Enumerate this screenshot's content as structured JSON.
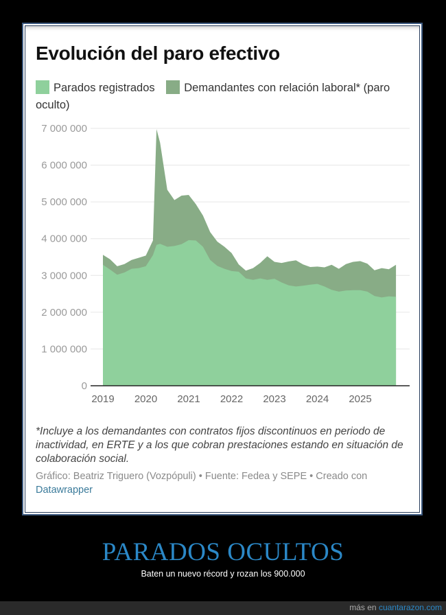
{
  "chart": {
    "title": "Evolución del paro efectivo",
    "legend": [
      {
        "label": "Parados registrados",
        "color": "#8fd09c"
      },
      {
        "label": "Demandantes con relación laboral* (paro oculto)",
        "color": "#88ac86"
      }
    ],
    "y_ticks": [
      "7 000 000",
      "6 000 000",
      "5 000 000",
      "4 000 000",
      "3 000 000",
      "2 000 000",
      "1 000 000",
      "0"
    ],
    "x_ticks": [
      "2019",
      "2020",
      "2021",
      "2022",
      "2023",
      "2024",
      "2025"
    ],
    "note": "*Incluye a los demandantes con contratos fijos discontinuos en periodo de inactividad, en ERTE y a los que cobran prestaciones estando en situación de colaboración social.",
    "credit_prefix": "Gráfico: Beatriz Triguero (Vozpópuli) • Fuente: Fedea y SEPE • Creado con",
    "credit_link": "Datawrapper"
  },
  "caption": {
    "title": "PARADOS OCULTOS",
    "subtitle": "Baten un nuevo récord y rozan los 900.000"
  },
  "footer": {
    "prefix": "más en",
    "site": "cuantarazon.com"
  },
  "chart_data": {
    "type": "area",
    "title": "Evolución del paro efectivo",
    "xlabel": "",
    "ylabel": "",
    "ylim": [
      0,
      7000000
    ],
    "grid": true,
    "legend_position": "top",
    "stacked": true,
    "x": [
      "2019-01",
      "2019-03",
      "2019-05",
      "2019-07",
      "2019-09",
      "2019-11",
      "2020-01",
      "2020-03",
      "2020-04",
      "2020-05",
      "2020-07",
      "2020-09",
      "2020-11",
      "2021-01",
      "2021-03",
      "2021-05",
      "2021-07",
      "2021-09",
      "2021-11",
      "2022-01",
      "2022-03",
      "2022-05",
      "2022-07",
      "2022-09",
      "2022-11",
      "2023-01",
      "2023-03",
      "2023-05",
      "2023-07",
      "2023-09",
      "2023-11",
      "2024-01",
      "2024-03",
      "2024-05",
      "2024-07",
      "2024-09",
      "2024-11",
      "2025-01",
      "2025-03",
      "2025-05",
      "2025-07",
      "2025-09",
      "2025-11"
    ],
    "series": [
      {
        "name": "Parados registrados",
        "color": "#8fd09c",
        "values": [
          3290000,
          3160000,
          3020000,
          3080000,
          3180000,
          3200000,
          3250000,
          3550000,
          3830000,
          3860000,
          3780000,
          3800000,
          3850000,
          3960000,
          3950000,
          3780000,
          3420000,
          3260000,
          3180000,
          3120000,
          3100000,
          2920000,
          2880000,
          2920000,
          2880000,
          2910000,
          2810000,
          2730000,
          2700000,
          2720000,
          2750000,
          2770000,
          2700000,
          2610000,
          2560000,
          2590000,
          2600000,
          2600000,
          2560000,
          2440000,
          2400000,
          2430000,
          2420000
        ]
      },
      {
        "name": "Demandantes con relación laboral* (paro oculto)",
        "color": "#88ac86",
        "values": [
          270000,
          280000,
          230000,
          230000,
          240000,
          280000,
          290000,
          400000,
          3150000,
          2750000,
          1550000,
          1250000,
          1320000,
          1230000,
          990000,
          850000,
          760000,
          660000,
          600000,
          490000,
          200000,
          210000,
          320000,
          420000,
          640000,
          460000,
          530000,
          650000,
          710000,
          580000,
          480000,
          470000,
          520000,
          680000,
          620000,
          720000,
          770000,
          790000,
          760000,
          700000,
          800000,
          740000,
          870000
        ]
      }
    ]
  }
}
